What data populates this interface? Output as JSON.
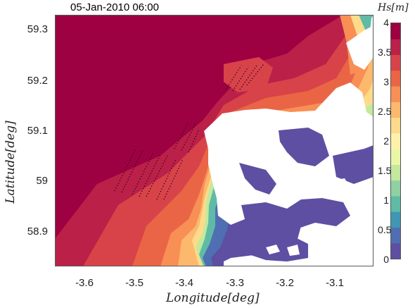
{
  "title": "05-Jan-2010 06:00",
  "map": {
    "xlabel": "Longitude[deg]",
    "ylabel": "Latitude[deg]",
    "x_ticks": [
      "-3.6",
      "-3.5",
      "-3.4",
      "-3.3",
      "-3.2",
      "-3.1"
    ],
    "y_ticks": [
      "59.3",
      "59.2",
      "59.1",
      "59",
      "58.9"
    ],
    "xlim": [
      -3.65,
      -3.04
    ],
    "ylim": [
      58.83,
      59.33
    ],
    "land_color": "#ffffff",
    "field": "significant wave height"
  },
  "colorbar": {
    "label": "Hs[m]",
    "range": [
      0,
      4
    ],
    "ticks": [
      "4",
      "3.5",
      "3",
      "2.5",
      "2",
      "1.5",
      "1",
      "0.5",
      "0"
    ],
    "colors": [
      "#5e4fa2",
      "#4f6fb2",
      "#3f97b4",
      "#5fbba5",
      "#8fd1a3",
      "#c3e99d",
      "#ebf7a6",
      "#fef2aa",
      "#fddb8a",
      "#fcb86c",
      "#f88f55",
      "#ea6545",
      "#d8434a",
      "#bb2048",
      "#9e0142"
    ]
  }
}
